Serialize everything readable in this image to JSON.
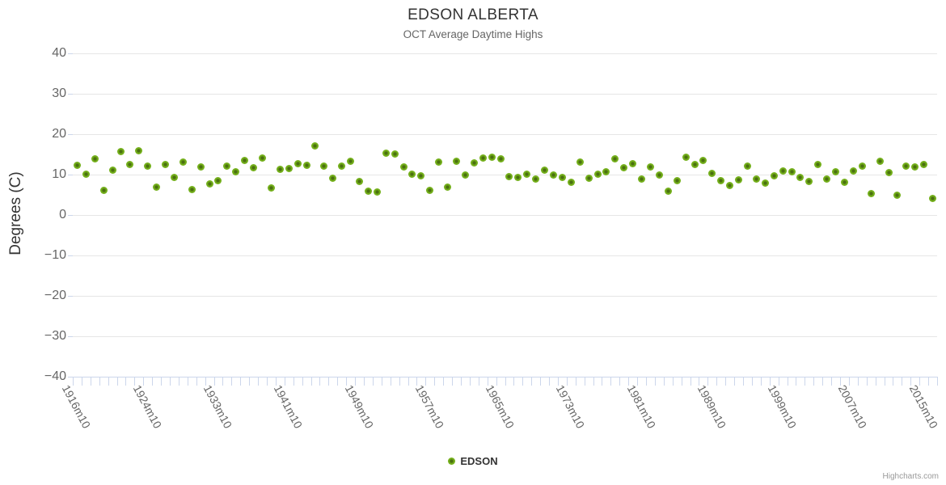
{
  "chart": {
    "title": "EDSON ALBERTA",
    "subtitle": "OCT Average Daytime Highs",
    "y_axis_title": "Degrees (C)",
    "legend": {
      "series_label": "EDSON"
    },
    "credits": "Highcharts.com"
  },
  "chart_data": {
    "type": "scatter",
    "title": "EDSON ALBERTA",
    "subtitle": "OCT Average Daytime Highs",
    "xlabel": "",
    "ylabel": "Degrees (C)",
    "ylim": [
      -40,
      40
    ],
    "grid": true,
    "legend_position": "bottom-center",
    "series_name": "EDSON",
    "marker_color": "#76b41d",
    "marker_core_color": "#4a7010",
    "grid_color": "#e6e6e6",
    "axis_tick_color": "#ccd6eb",
    "y_ticks": [
      {
        "v": 40,
        "label": "40"
      },
      {
        "v": 30,
        "label": "30"
      },
      {
        "v": 20,
        "label": "20"
      },
      {
        "v": 10,
        "label": "10"
      },
      {
        "v": 0,
        "label": "0"
      },
      {
        "v": -10,
        "label": "−10"
      },
      {
        "v": -20,
        "label": "−20"
      },
      {
        "v": -30,
        "label": "−30"
      },
      {
        "v": -40,
        "label": "−40"
      }
    ],
    "x_tick_label_step": 8,
    "visible_x_labels": [
      "1916m10",
      "1924m10",
      "1933m10",
      "1941m10",
      "1949m10",
      "1957m10",
      "1965m10",
      "1973m10",
      "1981m10",
      "1989m10",
      "1999m10",
      "2007m10",
      "2015m10"
    ],
    "categories": [
      "1916m10",
      "1917m10",
      "1918m10",
      "1919m10",
      "1920m10",
      "1921m10",
      "1922m10",
      "1923m10",
      "1924m10",
      "1925m10",
      "1926m10",
      "1928m10",
      "1929m10",
      "1930m10",
      "1931m10",
      "1932m10",
      "1933m10",
      "1934m10",
      "1935m10",
      "1936m10",
      "1937m10",
      "1938m10",
      "1939m10",
      "1940m10",
      "1941m10",
      "1942m10",
      "1943m10",
      "1944m10",
      "1945m10",
      "1946m10",
      "1947m10",
      "1948m10",
      "1949m10",
      "1950m10",
      "1951m10",
      "1952m10",
      "1953m10",
      "1954m10",
      "1955m10",
      "1956m10",
      "1957m10",
      "1958m10",
      "1959m10",
      "1960m10",
      "1961m10",
      "1962m10",
      "1963m10",
      "1964m10",
      "1965m10",
      "1966m10",
      "1967m10",
      "1968m10",
      "1969m10",
      "1970m10",
      "1971m10",
      "1972m10",
      "1973m10",
      "1974m10",
      "1975m10",
      "1976m10",
      "1977m10",
      "1978m10",
      "1979m10",
      "1980m10",
      "1981m10",
      "1982m10",
      "1983m10",
      "1984m10",
      "1985m10",
      "1986m10",
      "1987m10",
      "1988m10",
      "1989m10",
      "1990m10",
      "1991m10",
      "1992m10",
      "1993m10",
      "1996m10",
      "1997m10",
      "1998m10",
      "1999m10",
      "2000m10",
      "2001m10",
      "2002m10",
      "2003m10",
      "2004m10",
      "2005m10",
      "2006m10",
      "2007m10",
      "2008m10",
      "2009m10",
      "2010m10",
      "2011m10",
      "2012m10",
      "2013m10",
      "2014m10",
      "2015m10",
      "2016m10"
    ],
    "values": [
      12.4,
      10.1,
      13.9,
      6.2,
      11.1,
      15.7,
      12.5,
      15.9,
      12.1,
      7.0,
      12.6,
      9.3,
      13.1,
      6.3,
      12.0,
      7.7,
      8.5,
      12.1,
      10.7,
      13.5,
      11.7,
      14.1,
      6.7,
      11.3,
      11.5,
      12.8,
      12.3,
      17.1,
      12.1,
      9.2,
      12.1,
      13.3,
      8.4,
      6.0,
      5.7,
      15.3,
      15.2,
      12.0,
      10.1,
      9.7,
      6.1,
      13.2,
      6.9,
      13.3,
      9.9,
      12.9,
      14.1,
      14.3,
      14.0,
      9.5,
      9.3,
      10.2,
      8.9,
      11.2,
      10.0,
      9.3,
      8.2,
      13.2,
      9.1,
      10.1,
      10.7,
      14.0,
      11.7,
      12.7,
      8.9,
      11.9,
      9.9,
      5.9,
      8.5,
      14.3,
      12.5,
      13.5,
      10.3,
      8.5,
      7.4,
      8.7,
      12.1,
      8.9,
      8.0,
      9.7,
      11.0,
      10.7,
      9.4,
      8.3,
      12.5,
      8.9,
      10.7,
      8.2,
      10.9,
      12.1,
      5.4,
      13.4,
      10.5,
      5.0,
      12.1,
      11.9,
      12.5,
      4.2
    ]
  }
}
